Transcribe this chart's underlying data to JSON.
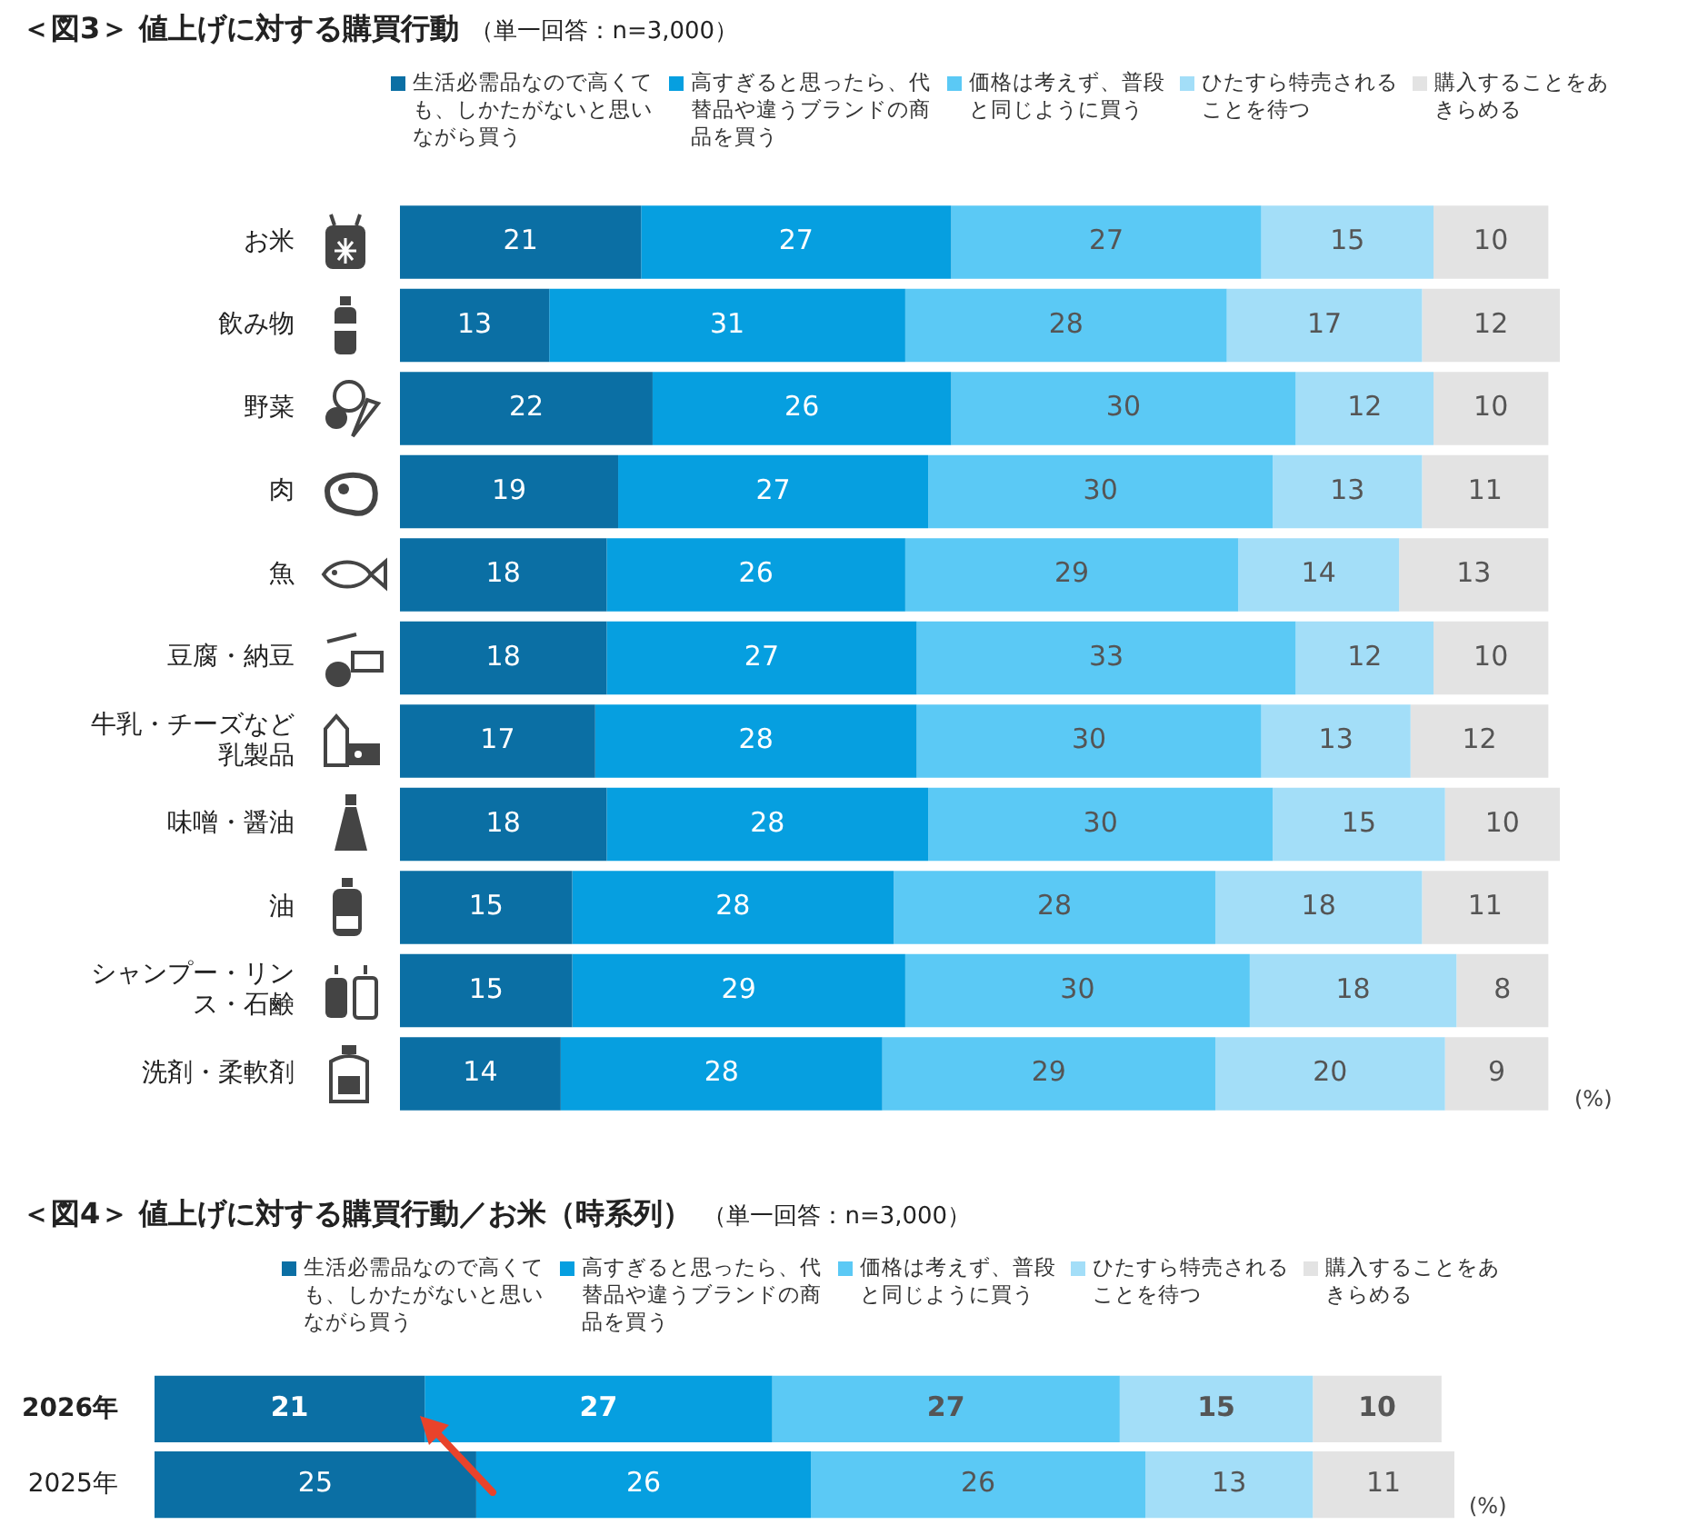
{
  "chart_data": [
    {
      "type": "bar",
      "orientation": "horizontal",
      "stacked": true,
      "title": "＜図3＞ 値上げに対する購買行動",
      "subtitle": "（単一回答：n=3,000）",
      "legend": "top",
      "tick_labels": "y",
      "data_labels": true,
      "annotations": [
        "(%)"
      ],
      "categories": [
        "お米",
        "飲み物",
        "野菜",
        "肉",
        "魚",
        "豆腐・納豆",
        "牛乳・チーズなど乳製品",
        "味噌・醤油",
        "油",
        "シャンプー・リンス・石鹸",
        "洗剤・柔軟剤"
      ],
      "series": [
        {
          "name": "生活必需品なので高くても、しかたがないと思いながら買う",
          "color": "#0b6fa4",
          "values": [
            21,
            13,
            22,
            19,
            18,
            18,
            17,
            18,
            15,
            15,
            14
          ]
        },
        {
          "name": "高すぎると思ったら、代替品や違うブランドの商品を買う",
          "color": "#069fe0",
          "values": [
            27,
            31,
            26,
            27,
            26,
            27,
            28,
            28,
            28,
            29,
            28
          ]
        },
        {
          "name": "価格は考えず、普段と同じように買う",
          "color": "#5bc9f5",
          "values": [
            27,
            28,
            30,
            30,
            29,
            33,
            30,
            30,
            28,
            30,
            29
          ]
        },
        {
          "name": "ひたすら特売されることを待つ",
          "color": "#a3def8",
          "values": [
            15,
            17,
            12,
            13,
            14,
            12,
            13,
            15,
            18,
            18,
            20
          ]
        },
        {
          "name": "購入することをあきらめる",
          "color": "#e3e3e3",
          "values": [
            10,
            12,
            10,
            11,
            13,
            10,
            12,
            10,
            11,
            8,
            9
          ]
        }
      ]
    },
    {
      "type": "bar",
      "orientation": "horizontal",
      "stacked": true,
      "title": "＜図4＞ 値上げに対する購買行動／お米（時系列）",
      "subtitle": "（単一回答：n=3,000）",
      "legend": "top",
      "tick_labels": "y",
      "data_labels": true,
      "annotations": [
        "(%)"
      ],
      "categories": [
        "2026年",
        "2025年"
      ],
      "series": [
        {
          "name": "生活必需品なので高くても、しかたがないと思いながら買う",
          "color": "#0b6fa4",
          "values": [
            21,
            25
          ]
        },
        {
          "name": "高すぎると思ったら、代替品や違うブランドの商品を買う",
          "color": "#069fe0",
          "values": [
            27,
            26
          ]
        },
        {
          "name": "価格は考えず、普段と同じように買う",
          "color": "#5bc9f5",
          "values": [
            27,
            26
          ]
        },
        {
          "name": "ひたすら特売されることを待つ",
          "color": "#a3def8",
          "values": [
            15,
            13
          ]
        },
        {
          "name": "購入することをあきらめる",
          "color": "#e3e3e3",
          "values": [
            10,
            11
          ]
        }
      ]
    }
  ]
}
